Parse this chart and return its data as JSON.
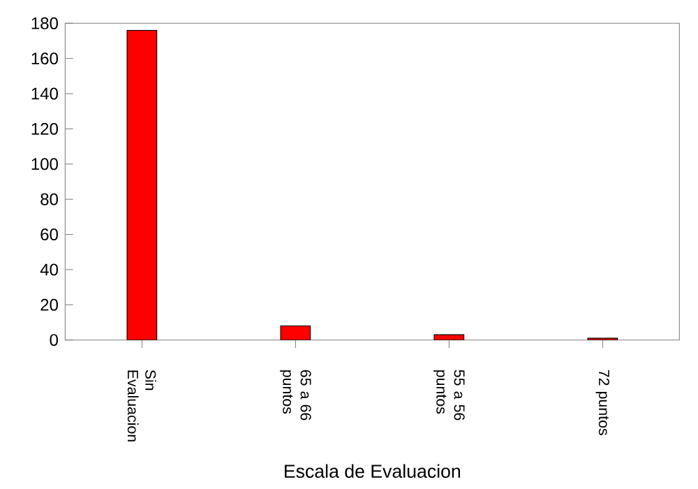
{
  "chart_data": {
    "type": "bar",
    "xlabel": "Escala de Evaluacion",
    "categories": [
      "Sin Evaluacion",
      "65 a 66 puntos",
      "55 a 56 puntos",
      "72 puntos"
    ],
    "values": [
      176,
      8,
      3,
      1
    ],
    "color": "#ff0000",
    "ylim": [
      0,
      180
    ],
    "yticks": [
      0,
      20,
      40,
      60,
      80,
      100,
      120,
      140,
      160,
      180
    ]
  }
}
